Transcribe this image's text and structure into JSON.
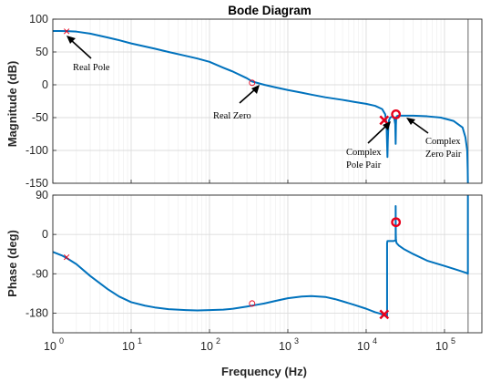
{
  "chart_data": [
    {
      "type": "line",
      "title": "Bode Diagram",
      "xlabel": "",
      "ylabel": "Magnitude (dB)",
      "xscale": "log",
      "xlim": [
        1,
        300000
      ],
      "ylim": [
        -150,
        100
      ],
      "yticks": [
        100,
        50,
        0,
        -50,
        -100,
        -150
      ],
      "grid": true,
      "series": [
        {
          "color": "#0072BD",
          "x": [
            1,
            1.2,
            1.5,
            2,
            3,
            5,
            7,
            10,
            20,
            30,
            50,
            70,
            100,
            150,
            200,
            300,
            350,
            500,
            700,
            1000,
            1500,
            2000,
            3000,
            5000,
            7000,
            10000,
            13000,
            16000,
            17500,
            18200,
            18500,
            18700,
            18900,
            19200,
            19600,
            20200,
            21000,
            21800,
            22800,
            23500,
            23800,
            24000,
            24200,
            24600,
            25500,
            27000,
            30000,
            40000,
            60000,
            90000,
            130000,
            170000,
            185000,
            195000,
            198000,
            199000
          ],
          "y": [
            82,
            82,
            81.8,
            81,
            78,
            72,
            68,
            63,
            55,
            50,
            44,
            40,
            35,
            26,
            20,
            10,
            5,
            0,
            -4,
            -8,
            -12,
            -15,
            -19,
            -23,
            -26,
            -29,
            -32,
            -37,
            -45,
            -60,
            -90,
            -110,
            -85,
            -62,
            -54,
            -50,
            -49,
            -49,
            -51,
            -60,
            -90,
            -62,
            -50,
            -48,
            -47,
            -47,
            -47,
            -47,
            -48,
            -50,
            -55,
            -65,
            -80,
            -100,
            -130,
            -150
          ]
        }
      ],
      "markers": [
        {
          "label": "Real Pole",
          "x": 1.5,
          "y": 81.5,
          "shape": "x"
        },
        {
          "label": "Real Zero",
          "x": 350,
          "y": 3,
          "shape": "o"
        },
        {
          "label": "Complex Pole Pair",
          "x": 17000,
          "y": -54,
          "shape": "x"
        },
        {
          "label": "Complex Zero Pair",
          "x": 24000,
          "y": -45,
          "shape": "o"
        }
      ],
      "vline_x": 200000
    },
    {
      "type": "line",
      "title": "",
      "xlabel": "Frequency  (Hz)",
      "ylabel": "Phase (deg)",
      "xscale": "log",
      "xlim": [
        1,
        300000
      ],
      "ylim": [
        -225,
        90
      ],
      "yticks": [
        90,
        0,
        -90,
        -180
      ],
      "xticks": [
        1,
        10,
        100,
        1000,
        10000,
        100000
      ],
      "xticklabels": [
        [
          "10",
          "0"
        ],
        [
          "10",
          "1"
        ],
        [
          "10",
          "2"
        ],
        [
          "10",
          "3"
        ],
        [
          "10",
          "4"
        ],
        [
          "10",
          "5"
        ]
      ],
      "grid": true,
      "series": [
        {
          "color": "#0072BD",
          "x": [
            1,
            1.3,
            1.5,
            2,
            3,
            5,
            7,
            10,
            15,
            20,
            30,
            50,
            70,
            100,
            150,
            200,
            300,
            400,
            500,
            700,
            1000,
            1500,
            2000,
            3000,
            4000,
            5000,
            7000,
            10000,
            13000,
            15000,
            17000,
            18000,
            18500,
            18500,
            18700,
            19500,
            21000,
            22500,
            23500,
            23700,
            23800,
            23800,
            23900,
            24000,
            24200,
            24500,
            26000,
            30000,
            40000,
            60000,
            100000,
            150000,
            190000,
            199000,
            199000,
            200000
          ],
          "y": [
            -40,
            -48,
            -54,
            -68,
            -95,
            -125,
            -142,
            -155,
            -163,
            -167,
            -171,
            -173,
            -174,
            -173,
            -172,
            -170,
            -165,
            -161,
            -158,
            -152,
            -146,
            -142,
            -141,
            -143,
            -148,
            -153,
            -161,
            -170,
            -178,
            -181,
            -185,
            -188,
            -188,
            -20,
            -15,
            -15,
            -15,
            -15,
            -14,
            -13,
            -12,
            65,
            0,
            -10,
            -17,
            -20,
            -25,
            -33,
            -45,
            -60,
            -72,
            -82,
            -88,
            -90,
            90,
            90
          ]
        }
      ],
      "markers": [
        {
          "x": 1.5,
          "y": -52,
          "shape": "x",
          "size": "small"
        },
        {
          "x": 350,
          "y": -158,
          "shape": "o",
          "size": "small"
        },
        {
          "x": 17000,
          "y": -183,
          "shape": "x"
        },
        {
          "x": 24000,
          "y": 28,
          "shape": "o"
        }
      ],
      "vline_x": 200000
    }
  ],
  "annotations": {
    "real_pole": "Real Pole",
    "real_zero": "Real Zero",
    "complex_pole_1": "Complex",
    "complex_pole_2": "Pole Pair",
    "complex_zero_1": "Complex",
    "complex_zero_2": "Zero Pair"
  },
  "colors": {
    "line": "#0072BD",
    "marker": "#E8001C",
    "grid": "#DCDCDC",
    "axis": "#262626",
    "vline": "#808080"
  }
}
